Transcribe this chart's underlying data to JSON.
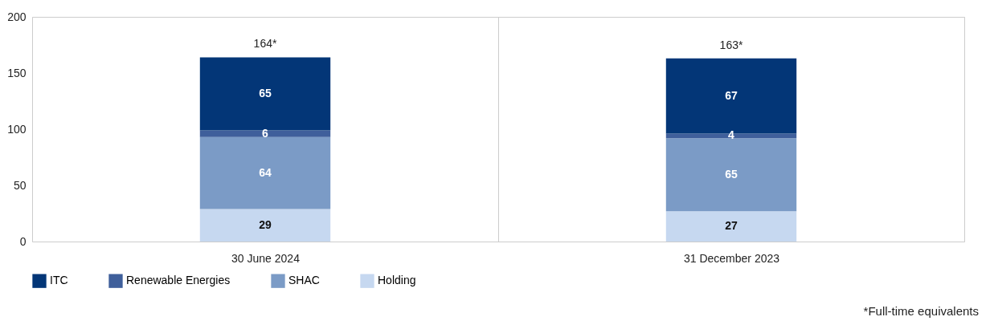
{
  "chart_data": {
    "type": "bar",
    "stacked": true,
    "categories": [
      "30 June 2024",
      "31 December 2023"
    ],
    "series": [
      {
        "name": "Holding",
        "color": "#c6d8f0",
        "values": [
          29,
          27
        ]
      },
      {
        "name": "SHAC",
        "color": "#7b9bc6",
        "values": [
          64,
          65
        ]
      },
      {
        "name": "Renewable Energies",
        "color": "#3f5f9b",
        "values": [
          6,
          4
        ]
      },
      {
        "name": "ITC",
        "color": "#033677",
        "values": [
          65,
          67
        ]
      }
    ],
    "ylim": [
      0,
      200
    ],
    "yticks": [
      0,
      50,
      100,
      150,
      200
    ],
    "grid": "x",
    "legend": "bottom",
    "data_labels": true,
    "totals": [
      "164*",
      "163*"
    ],
    "annotations": [
      "*Full-time equivalents"
    ]
  }
}
